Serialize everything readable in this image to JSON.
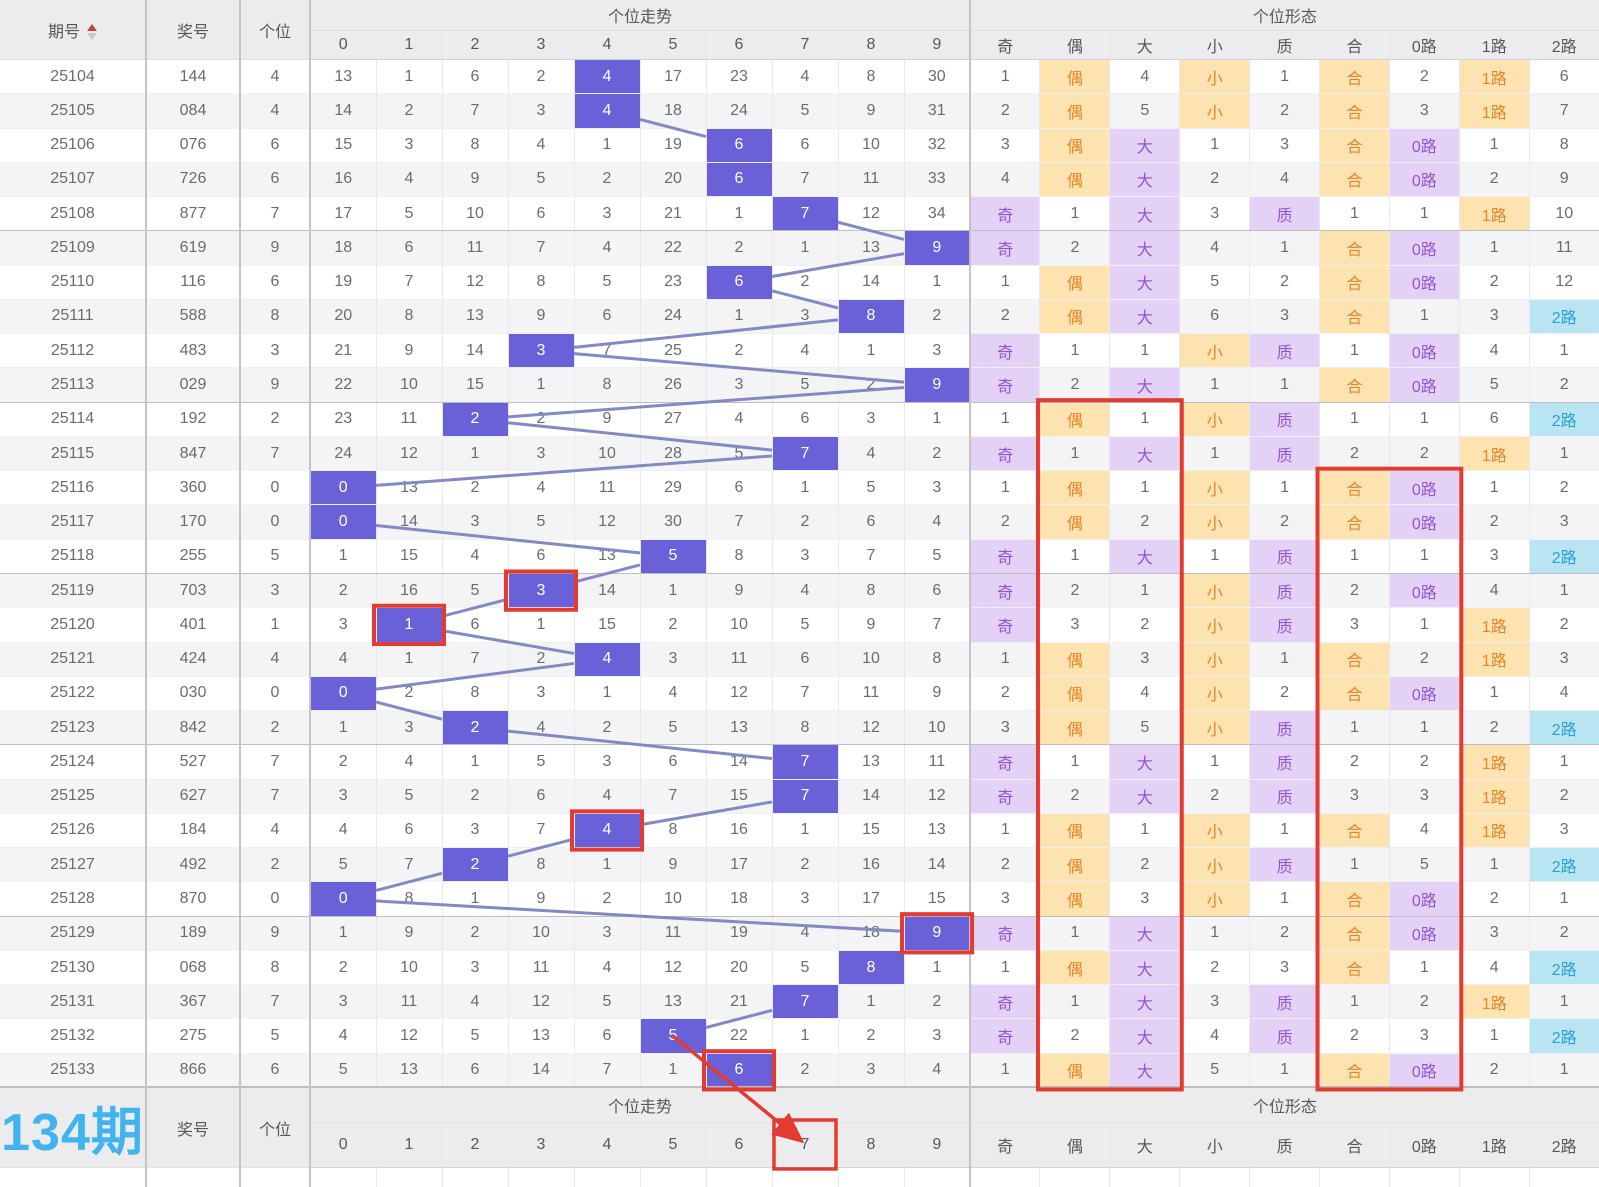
{
  "header": {
    "col_period": "期号",
    "col_number": "奖号",
    "col_digit": "个位",
    "trend_title": "个位走势",
    "trend_cols": [
      "0",
      "1",
      "2",
      "3",
      "4",
      "5",
      "6",
      "7",
      "8",
      "9"
    ],
    "form_title": "个位形态",
    "form_cols": [
      "奇",
      "偶",
      "大",
      "小",
      "质",
      "合",
      "0路",
      "1路",
      "2路"
    ]
  },
  "rows": [
    {
      "period": "25104",
      "number": "144",
      "digit": "4",
      "trend": [
        "13",
        "1",
        "6",
        "2",
        "4",
        "17",
        "23",
        "4",
        "8",
        "30"
      ],
      "form": [
        "1",
        "偶",
        "4",
        "小",
        "1",
        "合",
        "2",
        "1路",
        "6"
      ]
    },
    {
      "period": "25105",
      "number": "084",
      "digit": "4",
      "trend": [
        "14",
        "2",
        "7",
        "3",
        "4",
        "18",
        "24",
        "5",
        "9",
        "31"
      ],
      "form": [
        "2",
        "偶",
        "5",
        "小",
        "2",
        "合",
        "3",
        "1路",
        "7"
      ]
    },
    {
      "period": "25106",
      "number": "076",
      "digit": "6",
      "trend": [
        "15",
        "3",
        "8",
        "4",
        "1",
        "19",
        "6",
        "6",
        "10",
        "32"
      ],
      "form": [
        "3",
        "偶",
        "大",
        "1",
        "3",
        "合",
        "0路",
        "1",
        "8"
      ]
    },
    {
      "period": "25107",
      "number": "726",
      "digit": "6",
      "trend": [
        "16",
        "4",
        "9",
        "5",
        "2",
        "20",
        "6",
        "7",
        "11",
        "33"
      ],
      "form": [
        "4",
        "偶",
        "大",
        "2",
        "4",
        "合",
        "0路",
        "2",
        "9"
      ]
    },
    {
      "period": "25108",
      "number": "877",
      "digit": "7",
      "trend": [
        "17",
        "5",
        "10",
        "6",
        "3",
        "21",
        "1",
        "7",
        "12",
        "34"
      ],
      "form": [
        "奇",
        "1",
        "大",
        "3",
        "质",
        "1",
        "1",
        "1路",
        "10"
      ]
    },
    {
      "period": "25109",
      "number": "619",
      "digit": "9",
      "trend": [
        "18",
        "6",
        "11",
        "7",
        "4",
        "22",
        "2",
        "1",
        "13",
        "9"
      ],
      "form": [
        "奇",
        "2",
        "大",
        "4",
        "1",
        "合",
        "0路",
        "1",
        "11"
      ]
    },
    {
      "period": "25110",
      "number": "116",
      "digit": "6",
      "trend": [
        "19",
        "7",
        "12",
        "8",
        "5",
        "23",
        "6",
        "2",
        "14",
        "1"
      ],
      "form": [
        "1",
        "偶",
        "大",
        "5",
        "2",
        "合",
        "0路",
        "2",
        "12"
      ]
    },
    {
      "period": "25111",
      "number": "588",
      "digit": "8",
      "trend": [
        "20",
        "8",
        "13",
        "9",
        "6",
        "24",
        "1",
        "3",
        "8",
        "2"
      ],
      "form": [
        "2",
        "偶",
        "大",
        "6",
        "3",
        "合",
        "1",
        "3",
        "2路"
      ]
    },
    {
      "period": "25112",
      "number": "483",
      "digit": "3",
      "trend": [
        "21",
        "9",
        "14",
        "3",
        "7",
        "25",
        "2",
        "4",
        "1",
        "3"
      ],
      "form": [
        "奇",
        "1",
        "1",
        "小",
        "质",
        "1",
        "0路",
        "4",
        "1"
      ]
    },
    {
      "period": "25113",
      "number": "029",
      "digit": "9",
      "trend": [
        "22",
        "10",
        "15",
        "1",
        "8",
        "26",
        "3",
        "5",
        "2",
        "9"
      ],
      "form": [
        "奇",
        "2",
        "大",
        "1",
        "1",
        "合",
        "0路",
        "5",
        "2"
      ]
    },
    {
      "period": "25114",
      "number": "192",
      "digit": "2",
      "trend": [
        "23",
        "11",
        "2",
        "2",
        "9",
        "27",
        "4",
        "6",
        "3",
        "1"
      ],
      "form": [
        "1",
        "偶",
        "1",
        "小",
        "质",
        "1",
        "1",
        "6",
        "2路"
      ]
    },
    {
      "period": "25115",
      "number": "847",
      "digit": "7",
      "trend": [
        "24",
        "12",
        "1",
        "3",
        "10",
        "28",
        "5",
        "7",
        "4",
        "2"
      ],
      "form": [
        "奇",
        "1",
        "大",
        "1",
        "质",
        "2",
        "2",
        "1路",
        "1"
      ]
    },
    {
      "period": "25116",
      "number": "360",
      "digit": "0",
      "trend": [
        "0",
        "13",
        "2",
        "4",
        "11",
        "29",
        "6",
        "1",
        "5",
        "3"
      ],
      "form": [
        "1",
        "偶",
        "1",
        "小",
        "1",
        "合",
        "0路",
        "1",
        "2"
      ]
    },
    {
      "period": "25117",
      "number": "170",
      "digit": "0",
      "trend": [
        "0",
        "14",
        "3",
        "5",
        "12",
        "30",
        "7",
        "2",
        "6",
        "4"
      ],
      "form": [
        "2",
        "偶",
        "2",
        "小",
        "2",
        "合",
        "0路",
        "2",
        "3"
      ]
    },
    {
      "period": "25118",
      "number": "255",
      "digit": "5",
      "trend": [
        "1",
        "15",
        "4",
        "6",
        "13",
        "5",
        "8",
        "3",
        "7",
        "5"
      ],
      "form": [
        "奇",
        "1",
        "大",
        "1",
        "质",
        "1",
        "1",
        "3",
        "2路"
      ]
    },
    {
      "period": "25119",
      "number": "703",
      "digit": "3",
      "trend": [
        "2",
        "16",
        "5",
        "3",
        "14",
        "1",
        "9",
        "4",
        "8",
        "6"
      ],
      "form": [
        "奇",
        "2",
        "1",
        "小",
        "质",
        "2",
        "0路",
        "4",
        "1"
      ]
    },
    {
      "period": "25120",
      "number": "401",
      "digit": "1",
      "trend": [
        "3",
        "1",
        "6",
        "1",
        "15",
        "2",
        "10",
        "5",
        "9",
        "7"
      ],
      "form": [
        "奇",
        "3",
        "2",
        "小",
        "质",
        "3",
        "1",
        "1路",
        "2"
      ]
    },
    {
      "period": "25121",
      "number": "424",
      "digit": "4",
      "trend": [
        "4",
        "1",
        "7",
        "2",
        "4",
        "3",
        "11",
        "6",
        "10",
        "8"
      ],
      "form": [
        "1",
        "偶",
        "3",
        "小",
        "1",
        "合",
        "2",
        "1路",
        "3"
      ]
    },
    {
      "period": "25122",
      "number": "030",
      "digit": "0",
      "trend": [
        "0",
        "2",
        "8",
        "3",
        "1",
        "4",
        "12",
        "7",
        "11",
        "9"
      ],
      "form": [
        "2",
        "偶",
        "4",
        "小",
        "2",
        "合",
        "0路",
        "1",
        "4"
      ]
    },
    {
      "period": "25123",
      "number": "842",
      "digit": "2",
      "trend": [
        "1",
        "3",
        "2",
        "4",
        "2",
        "5",
        "13",
        "8",
        "12",
        "10"
      ],
      "form": [
        "3",
        "偶",
        "5",
        "小",
        "质",
        "1",
        "1",
        "2",
        "2路"
      ]
    },
    {
      "period": "25124",
      "number": "527",
      "digit": "7",
      "trend": [
        "2",
        "4",
        "1",
        "5",
        "3",
        "6",
        "14",
        "7",
        "13",
        "11"
      ],
      "form": [
        "奇",
        "1",
        "大",
        "1",
        "质",
        "2",
        "2",
        "1路",
        "1"
      ]
    },
    {
      "period": "25125",
      "number": "627",
      "digit": "7",
      "trend": [
        "3",
        "5",
        "2",
        "6",
        "4",
        "7",
        "15",
        "7",
        "14",
        "12"
      ],
      "form": [
        "奇",
        "2",
        "大",
        "2",
        "质",
        "3",
        "3",
        "1路",
        "2"
      ]
    },
    {
      "period": "25126",
      "number": "184",
      "digit": "4",
      "trend": [
        "4",
        "6",
        "3",
        "7",
        "4",
        "8",
        "16",
        "1",
        "15",
        "13"
      ],
      "form": [
        "1",
        "偶",
        "1",
        "小",
        "1",
        "合",
        "4",
        "1路",
        "3"
      ]
    },
    {
      "period": "25127",
      "number": "492",
      "digit": "2",
      "trend": [
        "5",
        "7",
        "2",
        "8",
        "1",
        "9",
        "17",
        "2",
        "16",
        "14"
      ],
      "form": [
        "2",
        "偶",
        "2",
        "小",
        "质",
        "1",
        "5",
        "1",
        "2路"
      ]
    },
    {
      "period": "25128",
      "number": "870",
      "digit": "0",
      "trend": [
        "0",
        "8",
        "1",
        "9",
        "2",
        "10",
        "18",
        "3",
        "17",
        "15"
      ],
      "form": [
        "3",
        "偶",
        "3",
        "小",
        "1",
        "合",
        "0路",
        "2",
        "1"
      ]
    },
    {
      "period": "25129",
      "number": "189",
      "digit": "9",
      "trend": [
        "1",
        "9",
        "2",
        "10",
        "3",
        "11",
        "19",
        "4",
        "18",
        "9"
      ],
      "form": [
        "奇",
        "1",
        "大",
        "1",
        "2",
        "合",
        "0路",
        "3",
        "2"
      ]
    },
    {
      "period": "25130",
      "number": "068",
      "digit": "8",
      "trend": [
        "2",
        "10",
        "3",
        "11",
        "4",
        "12",
        "20",
        "5",
        "8",
        "1"
      ],
      "form": [
        "1",
        "偶",
        "大",
        "2",
        "3",
        "合",
        "1",
        "4",
        "2路"
      ]
    },
    {
      "period": "25131",
      "number": "367",
      "digit": "7",
      "trend": [
        "3",
        "11",
        "4",
        "12",
        "5",
        "13",
        "21",
        "7",
        "1",
        "2"
      ],
      "form": [
        "奇",
        "1",
        "大",
        "3",
        "质",
        "1",
        "2",
        "1路",
        "1"
      ]
    },
    {
      "period": "25132",
      "number": "275",
      "digit": "5",
      "trend": [
        "4",
        "12",
        "5",
        "13",
        "6",
        "5",
        "22",
        "1",
        "2",
        "3"
      ],
      "form": [
        "奇",
        "2",
        "大",
        "4",
        "质",
        "2",
        "3",
        "1",
        "2路"
      ]
    },
    {
      "period": "25133",
      "number": "866",
      "digit": "6",
      "trend": [
        "5",
        "13",
        "6",
        "14",
        "7",
        "1",
        "6",
        "2",
        "3",
        "4"
      ],
      "form": [
        "1",
        "偶",
        "大",
        "5",
        "1",
        "合",
        "0路",
        "2",
        "1"
      ]
    }
  ],
  "footer": {
    "next_label": "134期",
    "col_number": "奖号",
    "col_digit": "个位",
    "trend_title": "个位走势",
    "trend_cols": [
      "0",
      "1",
      "2",
      "3",
      "4",
      "5",
      "6",
      "7",
      "8",
      "9"
    ],
    "form_title": "个位形态",
    "form_cols": [
      "奇",
      "偶",
      "大",
      "小",
      "质",
      "合",
      "0路",
      "1路",
      "2路"
    ]
  },
  "form_highlight_classes": {
    "奇": "c-purple",
    "大": "c-purple",
    "质": "c-purple",
    "0路": "c-purple",
    "偶": "c-orange",
    "小": "c-orange",
    "合": "c-orange",
    "1路": "c-orange",
    "2路": "c-cyan"
  },
  "annotations": {
    "trend_red_cells": [
      {
        "row": 15,
        "digit": 3
      },
      {
        "row": 16,
        "digit": 1
      },
      {
        "row": 22,
        "digit": 4
      },
      {
        "row": 25,
        "digit": 9
      },
      {
        "row": 29,
        "digit": 6
      }
    ],
    "form_red_rects": [
      {
        "row_start": 10,
        "row_end": 29,
        "col_start": 1,
        "col_end": 2
      },
      {
        "row_start": 12,
        "row_end": 29,
        "col_start": 5,
        "col_end": 6
      }
    ],
    "footer_red_trend_col": 7,
    "arrow_from": {
      "row": 28,
      "digit": 5
    }
  },
  "colors": {
    "hit_cell": "#6a61d8",
    "trend_line": "#8289c3",
    "annotation_red": "#e23b31",
    "next_period_text": "#41b4ee"
  }
}
